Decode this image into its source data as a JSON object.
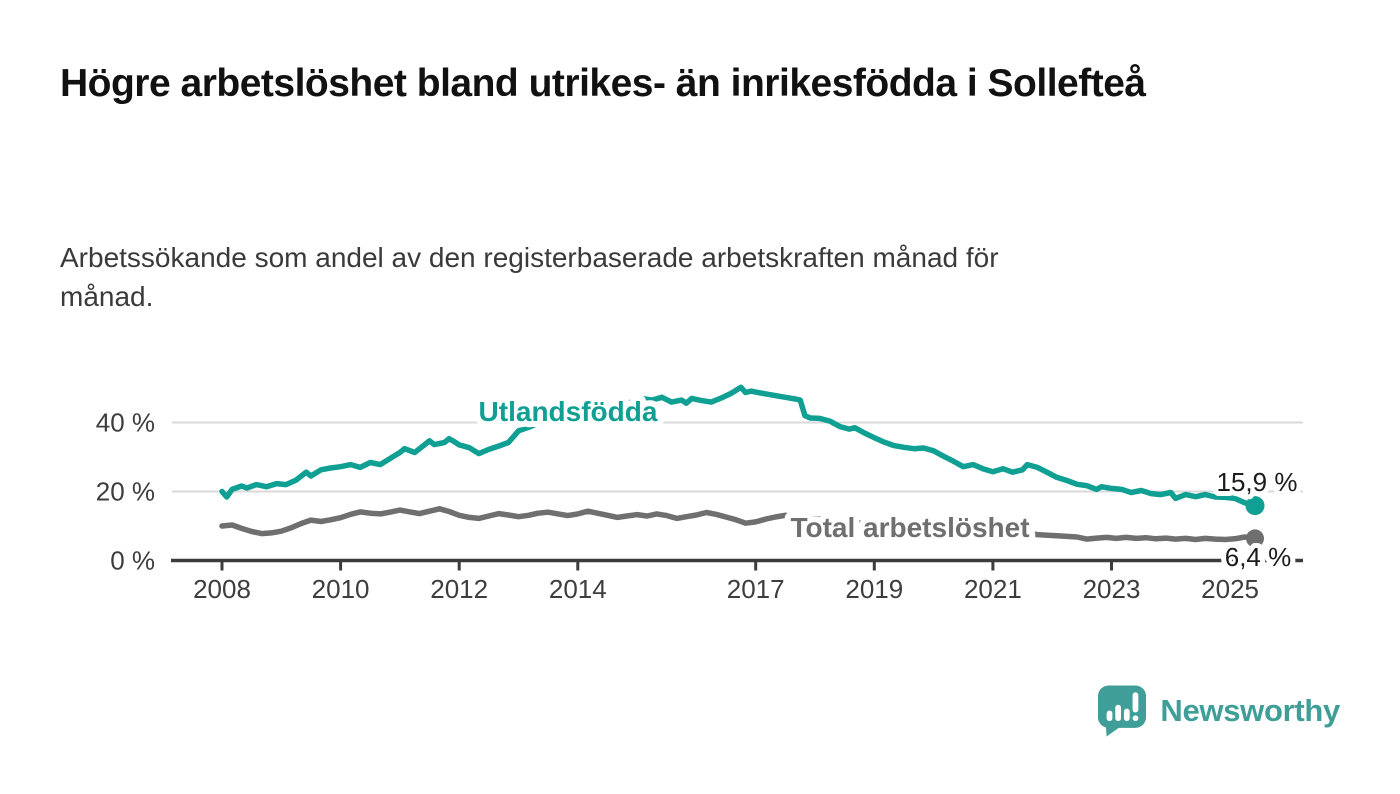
{
  "chart_data": {
    "type": "line",
    "title": "Högre arbetslöshet bland utrikes- än inrikesfödda i Sollefteå",
    "subtitle": "Arbetssökande som andel av den registerbaserade arbetskraften månad för månad.",
    "x_unit": "year",
    "xlim": [
      2007.2,
      2026.3
    ],
    "ylim": [
      0,
      52
    ],
    "grid": "horizontal",
    "legend_position": "inline-labels",
    "y_ticks": [
      {
        "value": 0,
        "label": "0 %"
      },
      {
        "value": 20,
        "label": "20 %"
      },
      {
        "value": 40,
        "label": "40 %"
      }
    ],
    "x_ticks": [
      {
        "value": 2008,
        "label": "2008"
      },
      {
        "value": 2010,
        "label": "2010"
      },
      {
        "value": 2012,
        "label": "2012"
      },
      {
        "value": 2014,
        "label": "2014"
      },
      {
        "value": 2017,
        "label": "2017"
      },
      {
        "value": 2019,
        "label": "2019"
      },
      {
        "value": 2021,
        "label": "2021"
      },
      {
        "value": 2023,
        "label": "2023"
      },
      {
        "value": 2025,
        "label": "2025"
      }
    ],
    "series": [
      {
        "key": "utlandsfodda",
        "name": "Utlandsfödda",
        "inline_label": "Utlandsfödda",
        "end_label": "15,9 %",
        "last_value": 15.9,
        "color": "#10a093",
        "points": [
          [
            2008.0,
            20.0
          ],
          [
            2008.08,
            18.4
          ],
          [
            2008.17,
            20.6
          ],
          [
            2008.33,
            21.6
          ],
          [
            2008.42,
            21.0
          ],
          [
            2008.58,
            22.0
          ],
          [
            2008.75,
            21.4
          ],
          [
            2008.92,
            22.3
          ],
          [
            2009.08,
            22.0
          ],
          [
            2009.25,
            23.3
          ],
          [
            2009.42,
            25.6
          ],
          [
            2009.5,
            24.5
          ],
          [
            2009.67,
            26.3
          ],
          [
            2009.83,
            26.8
          ],
          [
            2010.0,
            27.2
          ],
          [
            2010.17,
            27.8
          ],
          [
            2010.33,
            27.0
          ],
          [
            2010.5,
            28.4
          ],
          [
            2010.67,
            27.8
          ],
          [
            2010.83,
            29.5
          ],
          [
            2011.0,
            31.3
          ],
          [
            2011.08,
            32.4
          ],
          [
            2011.25,
            31.3
          ],
          [
            2011.42,
            33.6
          ],
          [
            2011.5,
            34.7
          ],
          [
            2011.58,
            33.6
          ],
          [
            2011.75,
            34.2
          ],
          [
            2011.83,
            35.3
          ],
          [
            2011.92,
            34.4
          ],
          [
            2012.0,
            33.5
          ],
          [
            2012.17,
            32.7
          ],
          [
            2012.33,
            31.0
          ],
          [
            2012.5,
            32.2
          ],
          [
            2012.67,
            33.2
          ],
          [
            2012.83,
            34.2
          ],
          [
            2012.92,
            36.0
          ],
          [
            2013.0,
            37.6
          ],
          [
            2013.17,
            38.6
          ],
          [
            2013.33,
            39.8
          ],
          [
            2013.5,
            40.8
          ],
          [
            2013.67,
            41.6
          ],
          [
            2013.83,
            42.4
          ],
          [
            2014.0,
            43.0
          ],
          [
            2014.17,
            43.6
          ],
          [
            2014.33,
            43.2
          ],
          [
            2014.5,
            44.2
          ],
          [
            2014.67,
            44.9
          ],
          [
            2014.83,
            45.6
          ],
          [
            2015.0,
            46.3
          ],
          [
            2015.08,
            47.0
          ],
          [
            2015.25,
            46.5
          ],
          [
            2015.42,
            47.3
          ],
          [
            2015.58,
            45.9
          ],
          [
            2015.75,
            46.5
          ],
          [
            2015.83,
            45.6
          ],
          [
            2015.92,
            47.0
          ],
          [
            2016.08,
            46.4
          ],
          [
            2016.25,
            45.9
          ],
          [
            2016.42,
            47.1
          ],
          [
            2016.58,
            48.4
          ],
          [
            2016.75,
            50.2
          ],
          [
            2016.83,
            48.7
          ],
          [
            2016.92,
            49.1
          ],
          [
            2017.0,
            48.8
          ],
          [
            2017.17,
            48.3
          ],
          [
            2017.33,
            47.8
          ],
          [
            2017.5,
            47.3
          ],
          [
            2017.67,
            46.8
          ],
          [
            2017.75,
            46.5
          ],
          [
            2017.83,
            42.0
          ],
          [
            2017.92,
            41.3
          ],
          [
            2018.08,
            41.2
          ],
          [
            2018.25,
            40.4
          ],
          [
            2018.42,
            38.8
          ],
          [
            2018.58,
            38.1
          ],
          [
            2018.67,
            38.5
          ],
          [
            2018.83,
            37.0
          ],
          [
            2019.0,
            35.6
          ],
          [
            2019.17,
            34.3
          ],
          [
            2019.33,
            33.3
          ],
          [
            2019.5,
            32.8
          ],
          [
            2019.67,
            32.4
          ],
          [
            2019.83,
            32.6
          ],
          [
            2020.0,
            31.8
          ],
          [
            2020.17,
            30.2
          ],
          [
            2020.33,
            28.8
          ],
          [
            2020.5,
            27.2
          ],
          [
            2020.67,
            27.8
          ],
          [
            2020.83,
            26.6
          ],
          [
            2021.0,
            25.7
          ],
          [
            2021.17,
            26.6
          ],
          [
            2021.33,
            25.6
          ],
          [
            2021.5,
            26.3
          ],
          [
            2021.58,
            27.8
          ],
          [
            2021.75,
            27.0
          ],
          [
            2021.92,
            25.5
          ],
          [
            2022.08,
            24.1
          ],
          [
            2022.25,
            23.2
          ],
          [
            2022.42,
            22.1
          ],
          [
            2022.58,
            21.7
          ],
          [
            2022.75,
            20.6
          ],
          [
            2022.83,
            21.4
          ],
          [
            2023.0,
            20.9
          ],
          [
            2023.17,
            20.6
          ],
          [
            2023.33,
            19.7
          ],
          [
            2023.5,
            20.3
          ],
          [
            2023.67,
            19.4
          ],
          [
            2023.83,
            19.1
          ],
          [
            2024.0,
            19.7
          ],
          [
            2024.08,
            18.0
          ],
          [
            2024.25,
            19.1
          ],
          [
            2024.42,
            18.5
          ],
          [
            2024.58,
            19.1
          ],
          [
            2024.75,
            18.4
          ],
          [
            2024.92,
            18.3
          ],
          [
            2025.08,
            18.0
          ],
          [
            2025.25,
            16.7
          ],
          [
            2025.42,
            15.9
          ]
        ]
      },
      {
        "key": "total",
        "name": "Total arbetslöshet",
        "inline_label": "Total arbetslöshet",
        "end_label": "6,4 %",
        "last_value": 6.4,
        "color": "#6f6f6f",
        "points": [
          [
            2008.0,
            10.0
          ],
          [
            2008.17,
            10.3
          ],
          [
            2008.33,
            9.3
          ],
          [
            2008.5,
            8.4
          ],
          [
            2008.67,
            7.8
          ],
          [
            2008.83,
            8.0
          ],
          [
            2009.0,
            8.5
          ],
          [
            2009.17,
            9.5
          ],
          [
            2009.33,
            10.7
          ],
          [
            2009.5,
            11.7
          ],
          [
            2009.67,
            11.3
          ],
          [
            2009.83,
            11.8
          ],
          [
            2010.0,
            12.4
          ],
          [
            2010.17,
            13.4
          ],
          [
            2010.33,
            14.1
          ],
          [
            2010.5,
            13.7
          ],
          [
            2010.67,
            13.5
          ],
          [
            2010.83,
            14.0
          ],
          [
            2011.0,
            14.6
          ],
          [
            2011.17,
            14.1
          ],
          [
            2011.33,
            13.6
          ],
          [
            2011.5,
            14.3
          ],
          [
            2011.67,
            15.0
          ],
          [
            2011.83,
            14.2
          ],
          [
            2012.0,
            13.1
          ],
          [
            2012.17,
            12.5
          ],
          [
            2012.33,
            12.2
          ],
          [
            2012.5,
            12.9
          ],
          [
            2012.67,
            13.6
          ],
          [
            2012.83,
            13.2
          ],
          [
            2013.0,
            12.7
          ],
          [
            2013.17,
            13.1
          ],
          [
            2013.33,
            13.7
          ],
          [
            2013.5,
            14.0
          ],
          [
            2013.67,
            13.5
          ],
          [
            2013.83,
            13.0
          ],
          [
            2014.0,
            13.5
          ],
          [
            2014.17,
            14.3
          ],
          [
            2014.33,
            13.7
          ],
          [
            2014.5,
            13.1
          ],
          [
            2014.67,
            12.5
          ],
          [
            2014.83,
            12.9
          ],
          [
            2015.0,
            13.3
          ],
          [
            2015.17,
            12.9
          ],
          [
            2015.33,
            13.5
          ],
          [
            2015.5,
            13.0
          ],
          [
            2015.67,
            12.2
          ],
          [
            2015.83,
            12.7
          ],
          [
            2016.0,
            13.2
          ],
          [
            2016.17,
            13.9
          ],
          [
            2016.33,
            13.4
          ],
          [
            2016.5,
            12.6
          ],
          [
            2016.67,
            11.8
          ],
          [
            2016.83,
            10.8
          ],
          [
            2017.0,
            11.2
          ],
          [
            2017.17,
            12.0
          ],
          [
            2017.33,
            12.6
          ],
          [
            2017.5,
            13.1
          ],
          [
            2017.75,
            12.6
          ],
          [
            2018.0,
            12.1
          ],
          [
            2018.33,
            11.6
          ],
          [
            2018.67,
            11.0
          ],
          [
            2019.0,
            10.5
          ],
          [
            2019.33,
            10.0
          ],
          [
            2019.67,
            9.7
          ],
          [
            2020.0,
            10.3
          ],
          [
            2020.25,
            10.9
          ],
          [
            2020.5,
            10.5
          ],
          [
            2020.75,
            9.9
          ],
          [
            2021.0,
            9.2
          ],
          [
            2021.25,
            8.5
          ],
          [
            2021.5,
            8.0
          ],
          [
            2021.75,
            7.5
          ],
          [
            2021.92,
            7.3
          ],
          [
            2022.08,
            7.2
          ],
          [
            2022.25,
            7.0
          ],
          [
            2022.42,
            6.8
          ],
          [
            2022.58,
            6.2
          ],
          [
            2022.75,
            6.5
          ],
          [
            2022.92,
            6.7
          ],
          [
            2023.08,
            6.4
          ],
          [
            2023.25,
            6.7
          ],
          [
            2023.42,
            6.4
          ],
          [
            2023.58,
            6.6
          ],
          [
            2023.75,
            6.3
          ],
          [
            2023.92,
            6.5
          ],
          [
            2024.08,
            6.2
          ],
          [
            2024.25,
            6.4
          ],
          [
            2024.42,
            6.1
          ],
          [
            2024.58,
            6.4
          ],
          [
            2024.75,
            6.2
          ],
          [
            2024.92,
            6.1
          ],
          [
            2025.08,
            6.3
          ],
          [
            2025.25,
            6.8
          ],
          [
            2025.42,
            6.4
          ]
        ]
      }
    ]
  },
  "footer": {
    "brand": "Newsworthy"
  },
  "colors": {
    "grid": "#d9d9d9",
    "axis": "#3c3c3c",
    "tick_label": "#3d3d3d",
    "value_label": "#1c1c1c",
    "brand_teal": "#3f9e97",
    "background": "#ffffff"
  }
}
